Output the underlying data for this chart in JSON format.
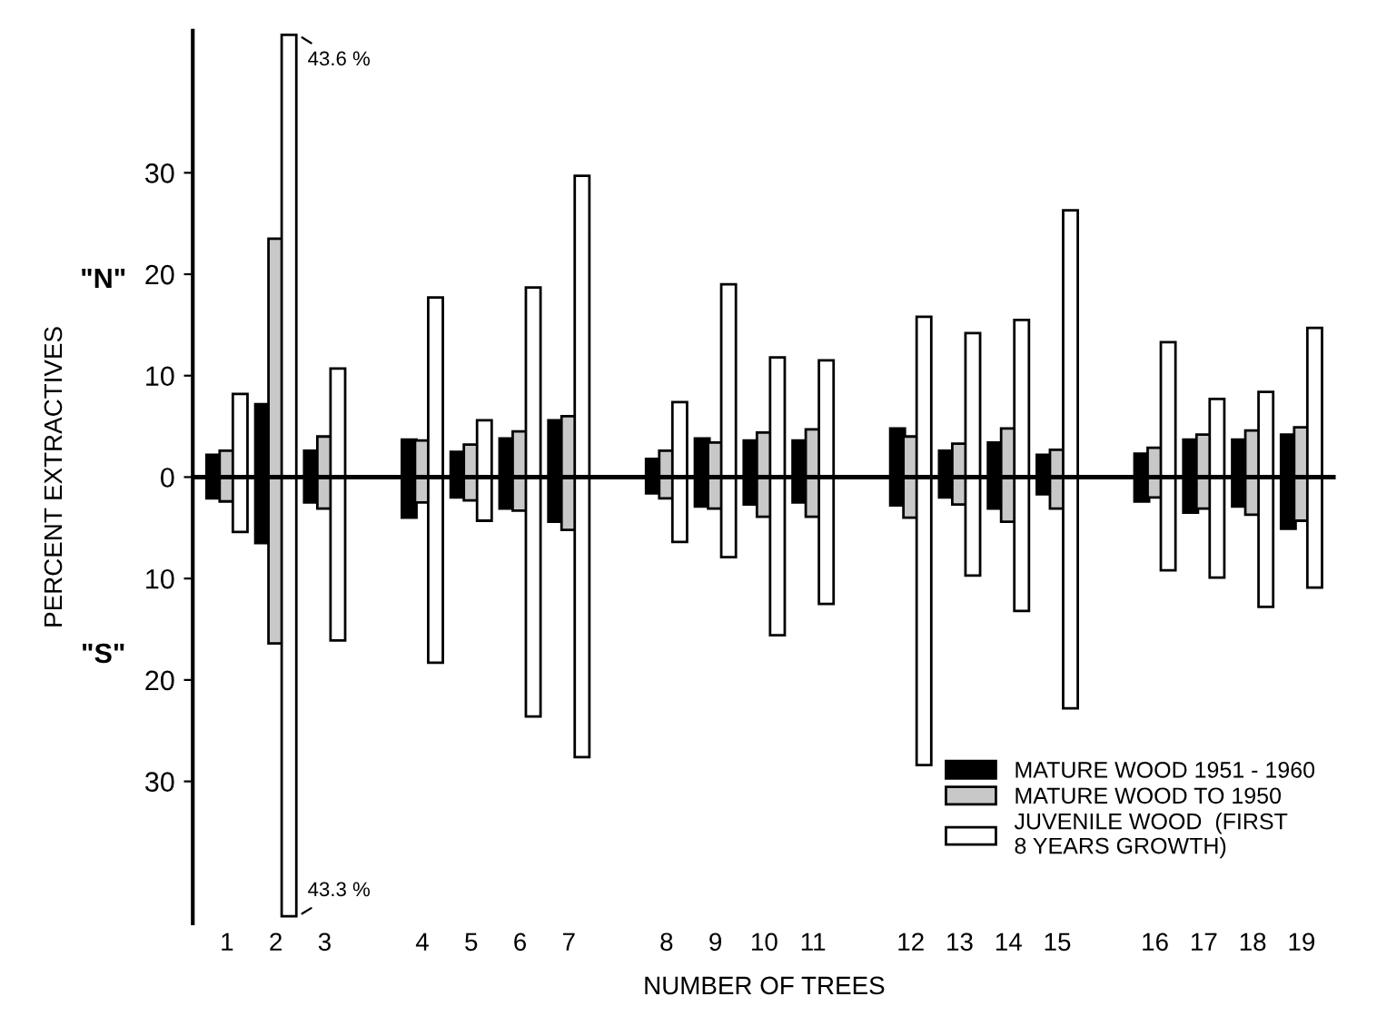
{
  "chart_data": {
    "type": "bar",
    "xlabel": "NUMBER OF TREES",
    "ylabel": "PERCENT EXTRACTIVES",
    "categories": [
      "1",
      "2",
      "3",
      null,
      "4",
      "5",
      "6",
      "7",
      null,
      "8",
      "9",
      "10",
      "11",
      null,
      "12",
      "13",
      "14",
      "15",
      null,
      "16",
      "17",
      "18",
      "19"
    ],
    "series": [
      {
        "name": "MATURE WOOD 1951 - 1960",
        "color": "#000000",
        "base": [
          -2.1,
          -6.5,
          -2.5,
          null,
          -4.0,
          -2.0,
          -3.1,
          -4.4,
          null,
          -1.6,
          -2.9,
          -2.7,
          -2.5,
          null,
          -2.8,
          -2.0,
          -3.1,
          -1.7,
          null,
          -2.4,
          -3.5,
          -2.9,
          -5.1
        ],
        "values": [
          4.3,
          13.7,
          5.1,
          null,
          7.7,
          4.5,
          6.9,
          10.0,
          null,
          3.4,
          6.7,
          6.3,
          6.1,
          null,
          7.6,
          4.6,
          6.5,
          3.9,
          null,
          4.7,
          7.2,
          6.6,
          9.3
        ]
      },
      {
        "name": "MATURE WOOD TO 1950",
        "color": "#c8c8c8",
        "base": [
          -2.4,
          -16.4,
          -3.1,
          null,
          -2.5,
          -2.3,
          -3.3,
          -5.2,
          null,
          -2.1,
          -3.1,
          -3.9,
          -3.9,
          null,
          -4.0,
          -2.7,
          -4.4,
          -3.1,
          null,
          -2.0,
          -3.1,
          -3.7,
          -4.3
        ],
        "values": [
          5.0,
          39.9,
          7.1,
          null,
          6.1,
          5.5,
          7.8,
          11.2,
          null,
          4.7,
          6.5,
          8.3,
          8.6,
          null,
          8.0,
          6.0,
          9.2,
          5.8,
          null,
          4.9,
          7.3,
          8.3,
          9.2
        ]
      },
      {
        "name": "JUVENILE WOOD  (FIRST\n8 YEARS GROWTH)",
        "color": "#ffffff",
        "base": [
          -5.4,
          -43.3,
          -16.1,
          null,
          -18.3,
          -4.3,
          -23.6,
          -27.6,
          null,
          -6.4,
          -7.9,
          -15.6,
          -12.5,
          null,
          -28.4,
          -9.7,
          -13.2,
          -22.8,
          null,
          -9.2,
          -9.9,
          -12.8,
          -10.9
        ],
        "values": [
          13.6,
          86.9,
          26.8,
          null,
          36.0,
          9.9,
          42.3,
          57.3,
          null,
          13.8,
          26.9,
          27.4,
          24.0,
          null,
          44.2,
          23.9,
          28.7,
          49.1,
          null,
          22.5,
          17.6,
          21.2,
          25.6
        ]
      }
    ],
    "ylim": [
      -44,
      44
    ],
    "yticks": [
      {
        "value": -30,
        "label": "30"
      },
      {
        "value": -20,
        "label": "20"
      },
      {
        "value": -10,
        "label": "10"
      },
      0,
      10,
      20,
      30
    ],
    "ref_lines": [
      {
        "axis": "y",
        "value": 0,
        "label": null
      }
    ],
    "annotations": [
      "\"N\"",
      "\"S\"",
      {
        "text": "43.6 %",
        "x": "2",
        "y": 43.6
      },
      {
        "text": "43.3 %",
        "x": "2",
        "y": -43.3
      }
    ],
    "legend": "bottom right",
    "grid": false
  }
}
